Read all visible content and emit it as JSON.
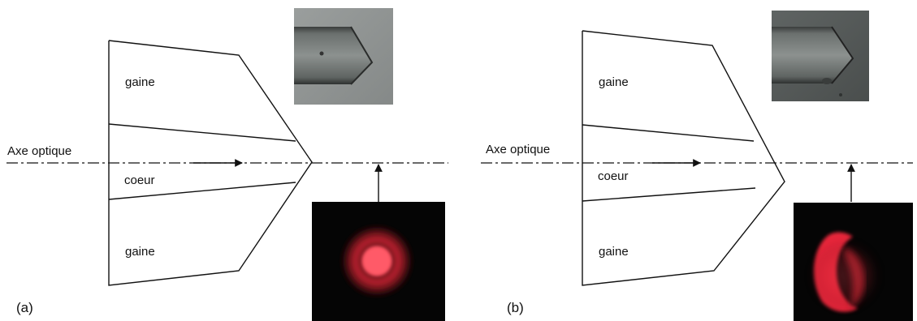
{
  "panels": [
    {
      "id": "a",
      "panel_label": "(a)",
      "axis_label": "Axe optique",
      "region_labels": {
        "cladding_top": "gaine",
        "core": "coeur",
        "cladding_bottom": "gaine"
      },
      "photo_description_icon": "fiber-tip-photo",
      "beam_pattern": "centered-spot"
    },
    {
      "id": "b",
      "panel_label": "(b)",
      "axis_label": "Axe optique",
      "region_labels": {
        "cladding_top": "gaine",
        "core": "coeur",
        "cladding_bottom": "gaine"
      },
      "photo_description_icon": "fiber-tip-photo",
      "beam_pattern": "off-axis-crescent"
    }
  ],
  "colors": {
    "line": "#111111",
    "beam": "#ff3344",
    "background_dark": "#050505",
    "photo_gray": "#8e9291"
  }
}
